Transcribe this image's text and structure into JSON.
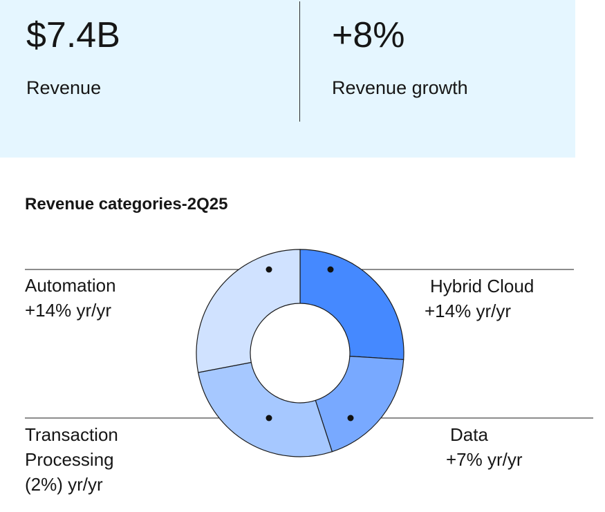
{
  "kpis": [
    {
      "value": "$7.4B",
      "label": "Revenue"
    },
    {
      "value": "+8%",
      "label": "Revenue growth"
    }
  ],
  "chart_data": {
    "type": "pie",
    "title": "Revenue categories-2Q25",
    "slices": [
      {
        "name": "Hybrid Cloud",
        "change": "+14% yr/yr",
        "share": 0.26,
        "color": "#4589ff"
      },
      {
        "name": "Data",
        "change": "+7% yr/yr",
        "share": 0.19,
        "color": "#78a9ff"
      },
      {
        "name": "Transaction Processing",
        "change": "(2%) yr/yr",
        "share": 0.27,
        "color": "#a6c8ff"
      },
      {
        "name": "Automation",
        "change": "+14% yr/yr",
        "share": 0.28,
        "color": "#d0e2ff"
      }
    ]
  },
  "labels": {
    "hybrid_cloud": [
      "Hybrid Cloud",
      "+14% yr/yr"
    ],
    "data": [
      "Data",
      "+7% yr/yr"
    ],
    "transaction_processing": [
      "Transaction",
      "Processing",
      "(2%) yr/yr"
    ],
    "automation": [
      "Automation",
      "+14% yr/yr"
    ]
  }
}
